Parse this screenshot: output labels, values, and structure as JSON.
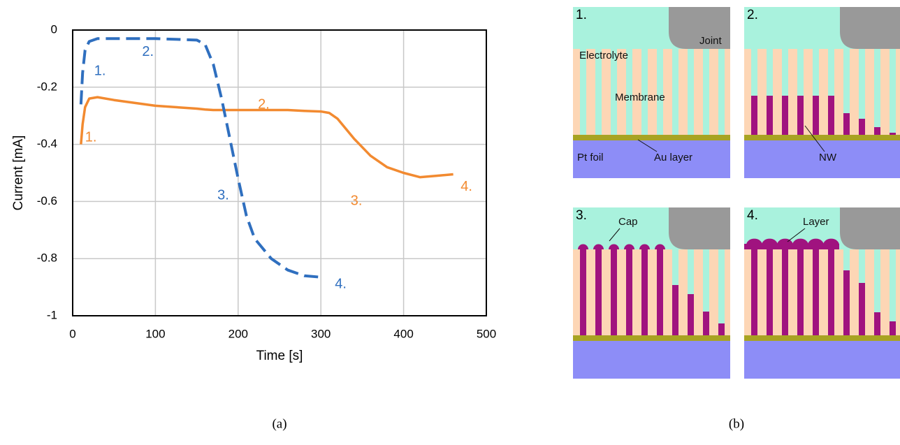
{
  "chart_data": {
    "type": "line",
    "x_label": "Time [s]",
    "y_label": "Current [mA]",
    "x": [
      10,
      12,
      15,
      20,
      30,
      50,
      100,
      150,
      160,
      170,
      180,
      190,
      200,
      210,
      220,
      240,
      260,
      280,
      300,
      310,
      320,
      340,
      360,
      380,
      400,
      420,
      440,
      460
    ],
    "series": [
      {
        "color": "#f28a30",
        "line_style": "solid",
        "values": [
          -0.4,
          -0.33,
          -0.27,
          -0.24,
          -0.235,
          -0.245,
          -0.265,
          -0.275,
          -0.278,
          -0.28,
          -0.28,
          -0.28,
          -0.28,
          -0.28,
          -0.28,
          -0.28,
          -0.28,
          -0.283,
          -0.285,
          -0.29,
          -0.31,
          -0.38,
          -0.44,
          -0.48,
          -0.5,
          -0.515,
          -0.51,
          -0.505
        ],
        "labels": [
          {
            "text": "1.",
            "x": 22,
            "y": -0.377
          },
          {
            "text": "2.",
            "x": 231,
            "y": -0.262
          },
          {
            "text": "3.",
            "x": 343,
            "y": -0.6
          },
          {
            "text": "4.",
            "x": 476,
            "y": -0.55
          }
        ]
      },
      {
        "color": "#2f6fbf",
        "line_style": "dashed",
        "values": [
          -0.26,
          -0.15,
          -0.07,
          -0.04,
          -0.03,
          -0.03,
          -0.03,
          -0.035,
          -0.05,
          -0.12,
          -0.24,
          -0.38,
          -0.52,
          -0.65,
          -0.73,
          -0.8,
          -0.84,
          -0.86,
          -0.865,
          null,
          null,
          null,
          null,
          null,
          null,
          null,
          null,
          null
        ],
        "labels": [
          {
            "text": "1.",
            "x": 33,
            "y": -0.145
          },
          {
            "text": "2.",
            "x": 91,
            "y": -0.078
          },
          {
            "text": "3.",
            "x": 182,
            "y": -0.58
          },
          {
            "text": "4.",
            "x": 324,
            "y": -0.89
          }
        ]
      }
    ],
    "xlim": [
      0,
      500
    ],
    "xticks": [
      0,
      100,
      200,
      300,
      400,
      500
    ],
    "ylim": [
      -1,
      0
    ],
    "yticks": [
      0,
      -0.2,
      -0.4,
      -0.6,
      -0.8,
      -1
    ],
    "grid": true
  },
  "diagram": {
    "panels": [
      {
        "step": "1.",
        "labels": [
          "Electrolyte",
          "Joint",
          "Membrane",
          "Pt foil",
          "Au layer"
        ]
      },
      {
        "step": "2.",
        "labels": [
          "NW"
        ]
      },
      {
        "step": "3.",
        "labels": [
          "Cap"
        ]
      },
      {
        "step": "4.",
        "labels": [
          "Layer"
        ]
      }
    ]
  },
  "captions": {
    "a": "(a)",
    "b": "(b)"
  }
}
